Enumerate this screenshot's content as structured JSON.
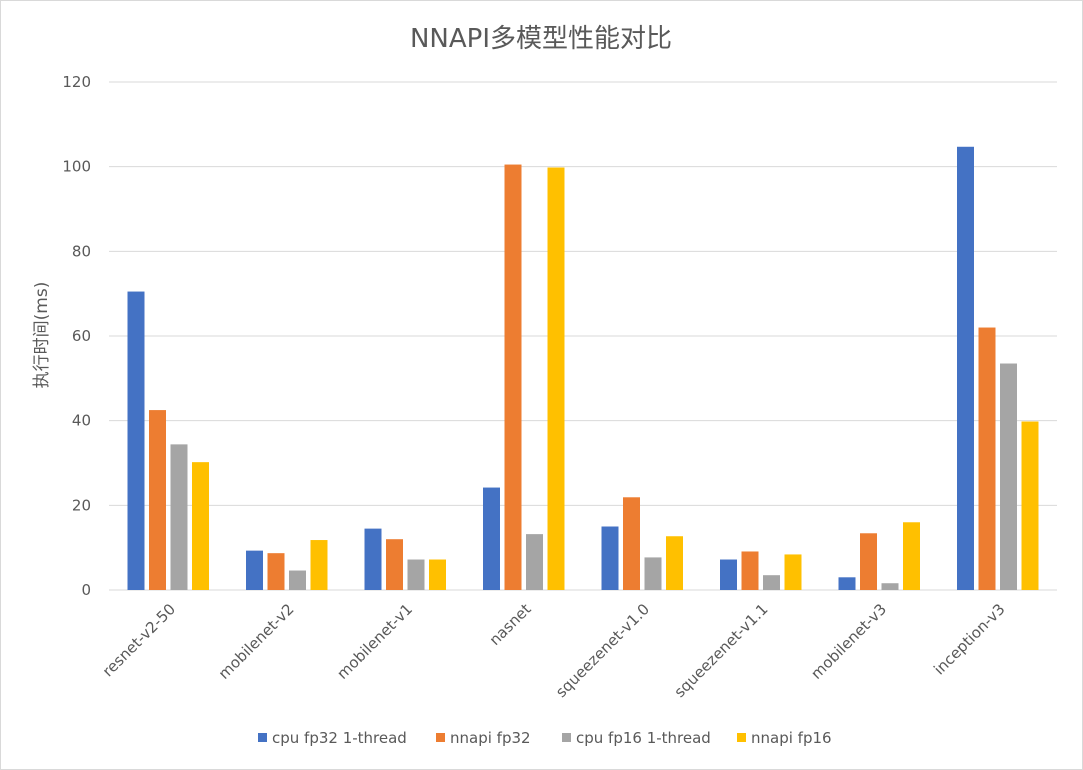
{
  "chart_data": {
    "type": "bar",
    "title": "NNAPI多模型性能对比",
    "xlabel": "",
    "ylabel": "执行时间(ms)",
    "ylim": [
      0,
      120
    ],
    "yticks": [
      0,
      20,
      40,
      60,
      80,
      100,
      120
    ],
    "grid": true,
    "legend_position": "bottom",
    "categories": [
      "resnet-v2-50",
      "mobilenet-v2",
      "mobilenet-v1",
      "nasnet",
      "squeezenet-v1.0",
      "squeezenet-v1.1",
      "mobilenet-v3",
      "inception-v3"
    ],
    "series": [
      {
        "name": "cpu fp32 1-thread",
        "color": "#4472C4",
        "values": [
          70.5,
          9.3,
          14.5,
          24.2,
          15.0,
          7.2,
          3.0,
          104.7
        ]
      },
      {
        "name": "nnapi fp32",
        "color": "#ED7D31",
        "values": [
          42.5,
          8.7,
          12.0,
          100.5,
          21.9,
          9.1,
          13.4,
          62.0
        ]
      },
      {
        "name": "cpu fp16 1-thread",
        "color": "#A5A5A5",
        "values": [
          34.4,
          4.6,
          7.2,
          13.2,
          7.7,
          3.5,
          1.6,
          53.5
        ]
      },
      {
        "name": "nnapi fp16",
        "color": "#FFC000",
        "values": [
          30.2,
          11.8,
          7.2,
          99.8,
          12.7,
          8.4,
          16.0,
          39.8
        ]
      }
    ]
  }
}
